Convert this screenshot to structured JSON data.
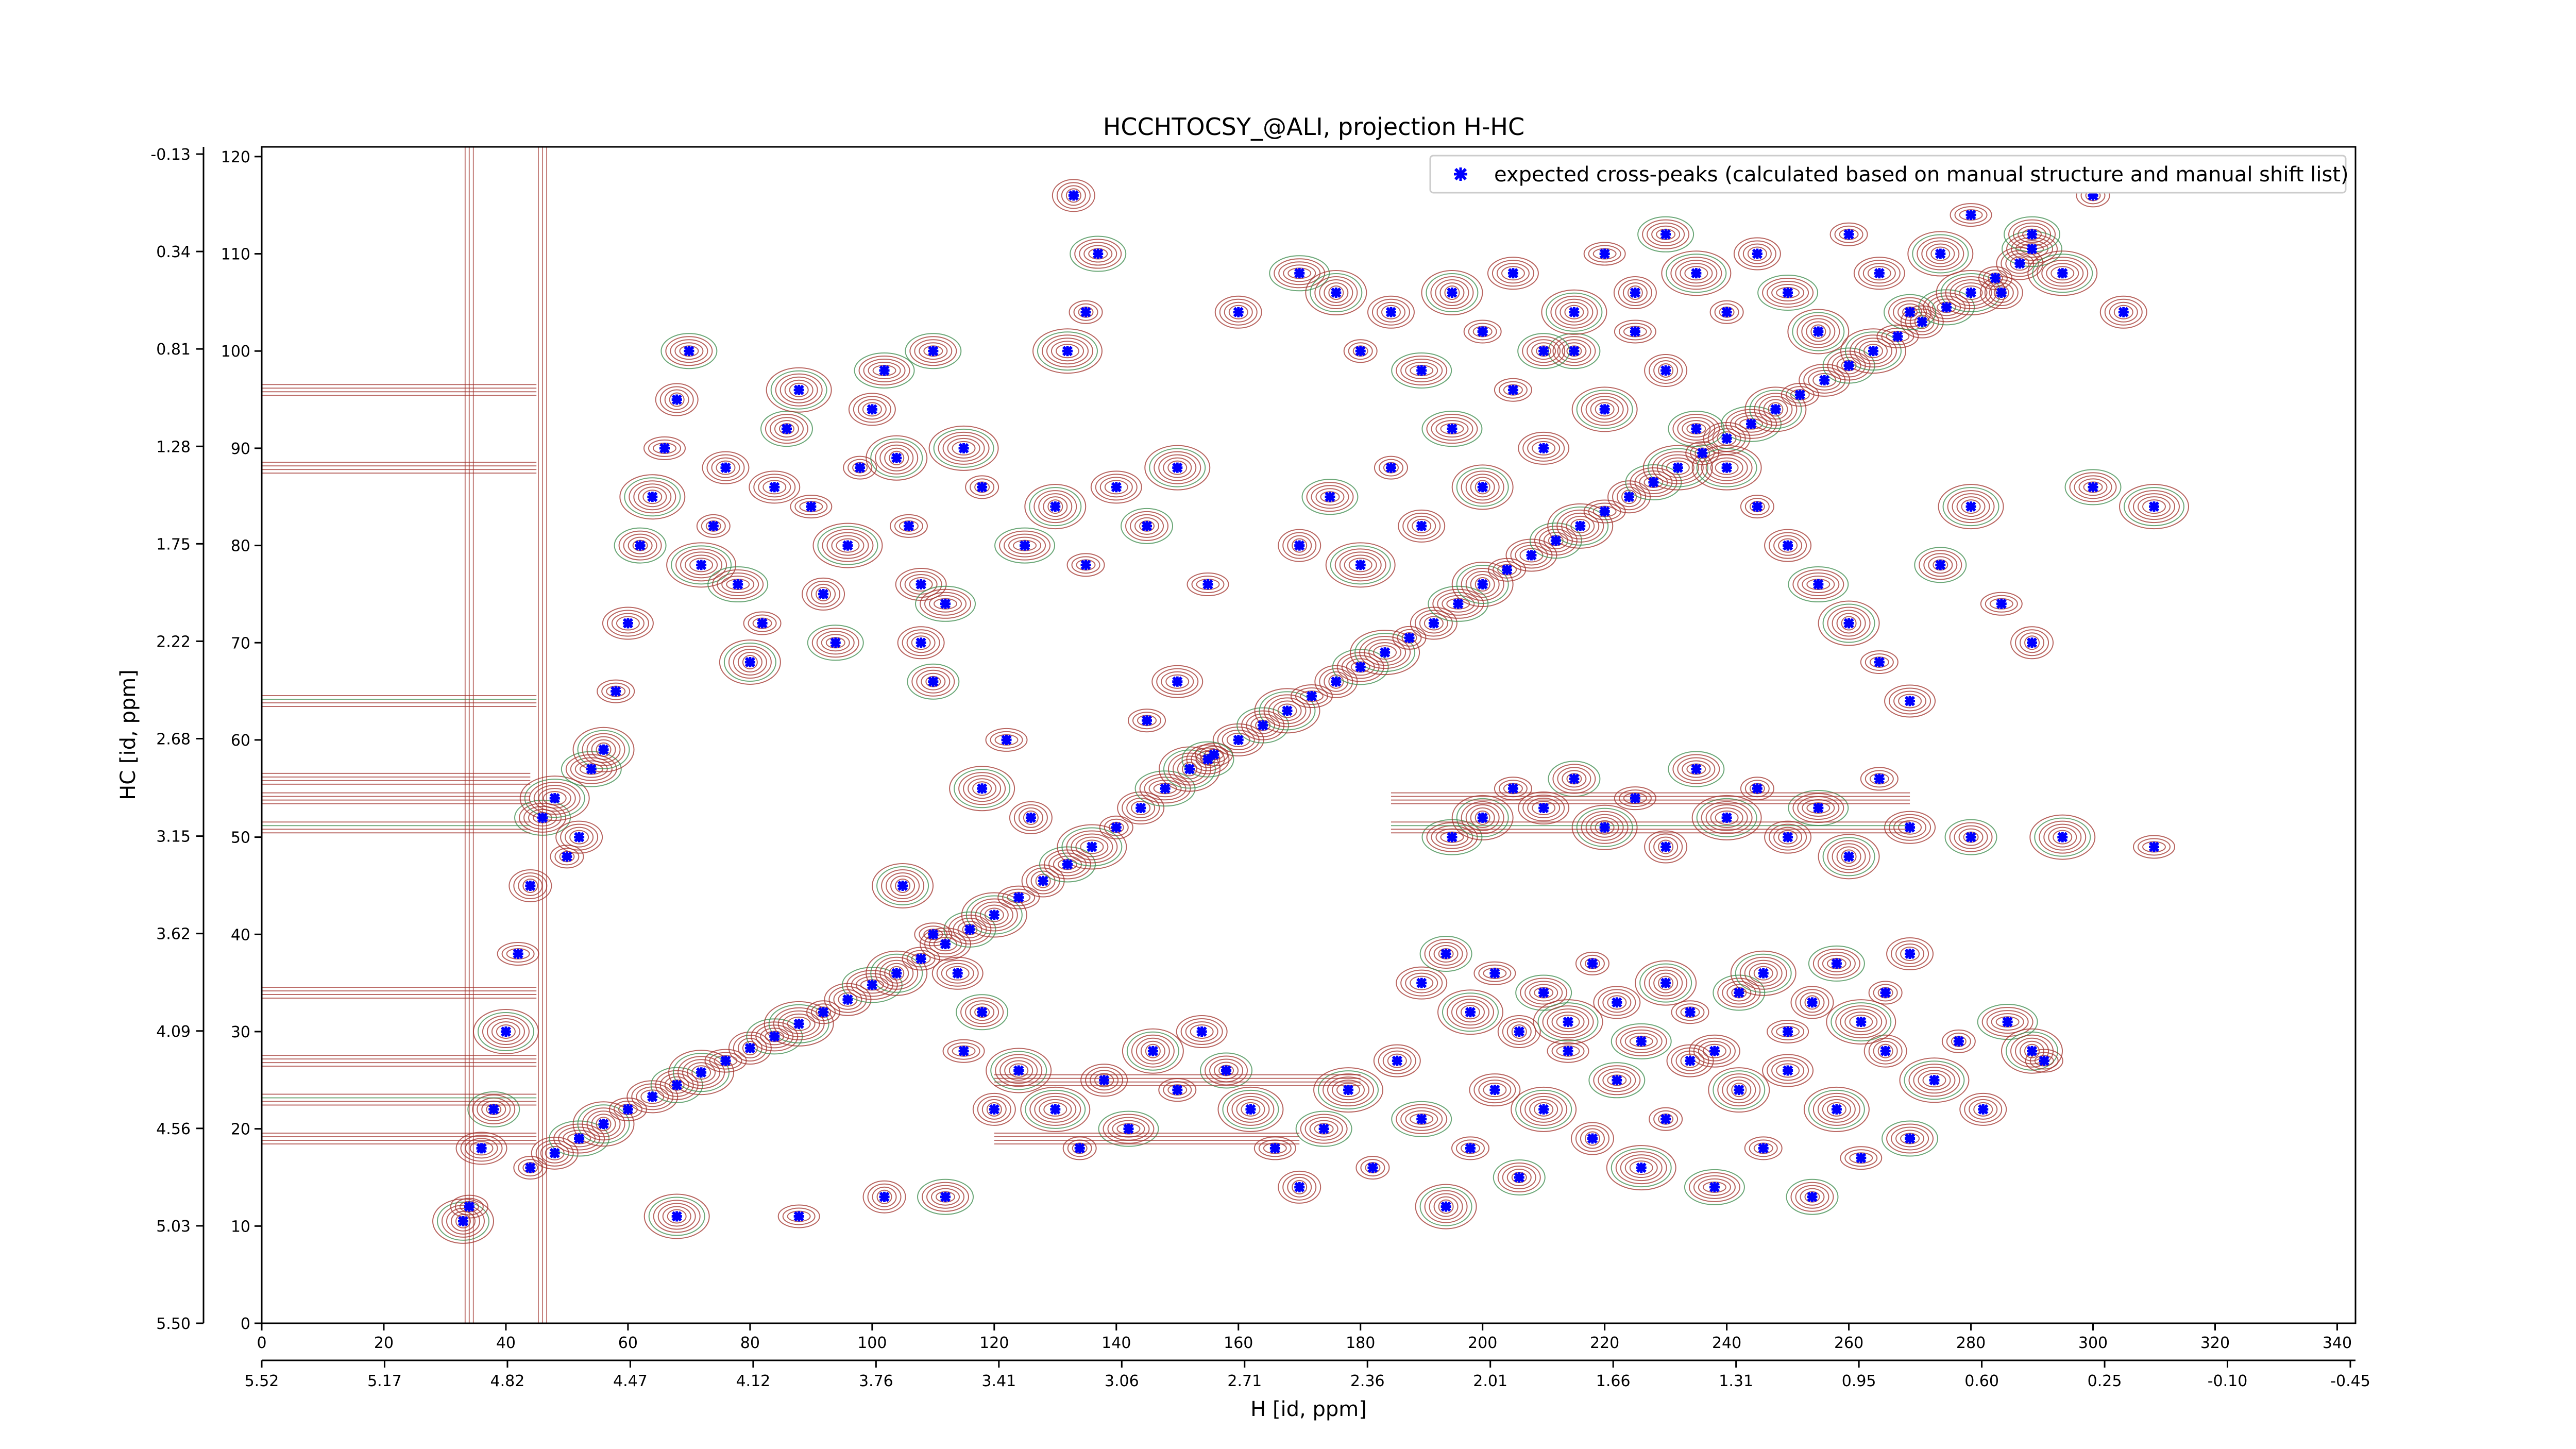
{
  "chart_data": {
    "type": "scatter",
    "title": "HCCHTOCSY_@ALI, projection H-HC",
    "xlabel_bottom": "H [id, ppm]",
    "ylabel_left": "HC [id, ppm]",
    "x_index_range": [
      0,
      343
    ],
    "y_index_range": [
      0,
      121
    ],
    "x_index_ticks": [
      "0",
      "20",
      "40",
      "60",
      "80",
      "100",
      "120",
      "140",
      "160",
      "180",
      "200",
      "220",
      "240",
      "260",
      "280",
      "300",
      "320",
      "340"
    ],
    "y_index_ticks": [
      "0",
      "10",
      "20",
      "30",
      "40",
      "50",
      "60",
      "70",
      "80",
      "90",
      "100",
      "110",
      "120"
    ],
    "x_ppm_ticks": [
      "5.52",
      "5.17",
      "4.82",
      "4.47",
      "4.12",
      "3.76",
      "3.41",
      "3.06",
      "2.71",
      "2.36",
      "2.01",
      "1.66",
      "1.31",
      "0.95",
      "0.60",
      "0.25",
      "-0.10",
      "-0.45"
    ],
    "y_ppm_ticks": [
      "5.50",
      "5.03",
      "4.56",
      "4.09",
      "3.62",
      "3.15",
      "2.68",
      "2.22",
      "1.75",
      "1.28",
      "0.81",
      "0.34",
      "-0.13"
    ],
    "legend": {
      "label": "expected cross-peaks (calculated based on manual structure and manual shift list)",
      "position": "top-right"
    },
    "series": [
      {
        "name": "expected cross-peaks (calculated based on manual structure and manual shift list)",
        "color": "#0000ff",
        "marker": "x",
        "points": [
          [
            44,
            16
          ],
          [
            48,
            17.5
          ],
          [
            52,
            19
          ],
          [
            56,
            20.5
          ],
          [
            60,
            22
          ],
          [
            64,
            23.3
          ],
          [
            68,
            24.5
          ],
          [
            72,
            25.8
          ],
          [
            76,
            27
          ],
          [
            80,
            28.3
          ],
          [
            84,
            29.5
          ],
          [
            88,
            30.8
          ],
          [
            92,
            32
          ],
          [
            96,
            33.3
          ],
          [
            100,
            34.8
          ],
          [
            104,
            36
          ],
          [
            108,
            37.5
          ],
          [
            112,
            39
          ],
          [
            116,
            40.5
          ],
          [
            120,
            42
          ],
          [
            124,
            43.8
          ],
          [
            128,
            45.5
          ],
          [
            132,
            47.2
          ],
          [
            136,
            49
          ],
          [
            140,
            51
          ],
          [
            144,
            53
          ],
          [
            148,
            55
          ],
          [
            152,
            57
          ],
          [
            156,
            58.5
          ],
          [
            160,
            60
          ],
          [
            164,
            61.5
          ],
          [
            168,
            63
          ],
          [
            172,
            64.5
          ],
          [
            176,
            66
          ],
          [
            180,
            67.5
          ],
          [
            184,
            69
          ],
          [
            188,
            70.5
          ],
          [
            192,
            72
          ],
          [
            196,
            74
          ],
          [
            200,
            76
          ],
          [
            204,
            77.5
          ],
          [
            208,
            79
          ],
          [
            212,
            80.5
          ],
          [
            216,
            82
          ],
          [
            220,
            83.5
          ],
          [
            224,
            85
          ],
          [
            228,
            86.5
          ],
          [
            232,
            88
          ],
          [
            236,
            89.5
          ],
          [
            240,
            91
          ],
          [
            244,
            92.5
          ],
          [
            248,
            94
          ],
          [
            252,
            95.5
          ],
          [
            256,
            97
          ],
          [
            260,
            98.5
          ],
          [
            264,
            100
          ],
          [
            268,
            101.5
          ],
          [
            272,
            103
          ],
          [
            276,
            104.5
          ],
          [
            280,
            106
          ],
          [
            284,
            107.5
          ],
          [
            288,
            109
          ],
          [
            290,
            110.5
          ],
          [
            33,
            10.5
          ],
          [
            34,
            12
          ],
          [
            36,
            18
          ],
          [
            38,
            22
          ],
          [
            40,
            30
          ],
          [
            42,
            38
          ],
          [
            44,
            45
          ],
          [
            46,
            52
          ],
          [
            48,
            54
          ],
          [
            50,
            48
          ],
          [
            52,
            50
          ],
          [
            54,
            57
          ],
          [
            56,
            59
          ],
          [
            58,
            65
          ],
          [
            60,
            72
          ],
          [
            62,
            80
          ],
          [
            64,
            85
          ],
          [
            66,
            90
          ],
          [
            68,
            95
          ],
          [
            70,
            100
          ],
          [
            72,
            78
          ],
          [
            74,
            82
          ],
          [
            76,
            88
          ],
          [
            78,
            76
          ],
          [
            80,
            68
          ],
          [
            82,
            72
          ],
          [
            84,
            86
          ],
          [
            86,
            92
          ],
          [
            88,
            96
          ],
          [
            90,
            84
          ],
          [
            92,
            75
          ],
          [
            94,
            70
          ],
          [
            96,
            80
          ],
          [
            98,
            88
          ],
          [
            100,
            94
          ],
          [
            102,
            98
          ],
          [
            104,
            89
          ],
          [
            106,
            82
          ],
          [
            108,
            76
          ],
          [
            110,
            66
          ],
          [
            68,
            11
          ],
          [
            88,
            11
          ],
          [
            102,
            13
          ],
          [
            112,
            13
          ],
          [
            130,
            22
          ],
          [
            134,
            18
          ],
          [
            138,
            25
          ],
          [
            142,
            20
          ],
          [
            146,
            28
          ],
          [
            150,
            24
          ],
          [
            154,
            30
          ],
          [
            158,
            26
          ],
          [
            162,
            22
          ],
          [
            166,
            18
          ],
          [
            170,
            14
          ],
          [
            174,
            20
          ],
          [
            178,
            24
          ],
          [
            182,
            16
          ],
          [
            186,
            27
          ],
          [
            190,
            21
          ],
          [
            194,
            12
          ],
          [
            198,
            18
          ],
          [
            202,
            24
          ],
          [
            206,
            15
          ],
          [
            210,
            22
          ],
          [
            214,
            28
          ],
          [
            218,
            19
          ],
          [
            222,
            25
          ],
          [
            226,
            16
          ],
          [
            230,
            21
          ],
          [
            234,
            27
          ],
          [
            238,
            14
          ],
          [
            242,
            24
          ],
          [
            246,
            18
          ],
          [
            250,
            26
          ],
          [
            254,
            13
          ],
          [
            258,
            22
          ],
          [
            262,
            17
          ],
          [
            266,
            28
          ],
          [
            270,
            19
          ],
          [
            274,
            25
          ],
          [
            278,
            29
          ],
          [
            282,
            22
          ],
          [
            286,
            31
          ],
          [
            290,
            28
          ],
          [
            292,
            27
          ],
          [
            190,
            35
          ],
          [
            194,
            38
          ],
          [
            198,
            32
          ],
          [
            202,
            36
          ],
          [
            206,
            30
          ],
          [
            210,
            34
          ],
          [
            214,
            31
          ],
          [
            218,
            37
          ],
          [
            222,
            33
          ],
          [
            226,
            29
          ],
          [
            230,
            35
          ],
          [
            234,
            32
          ],
          [
            238,
            28
          ],
          [
            242,
            34
          ],
          [
            246,
            36
          ],
          [
            250,
            30
          ],
          [
            254,
            33
          ],
          [
            258,
            37
          ],
          [
            262,
            31
          ],
          [
            266,
            34
          ],
          [
            270,
            38
          ],
          [
            195,
            50
          ],
          [
            200,
            52
          ],
          [
            205,
            55
          ],
          [
            210,
            53
          ],
          [
            215,
            56
          ],
          [
            220,
            51
          ],
          [
            225,
            54
          ],
          [
            230,
            49
          ],
          [
            235,
            57
          ],
          [
            240,
            52
          ],
          [
            245,
            55
          ],
          [
            250,
            50
          ],
          [
            255,
            53
          ],
          [
            260,
            48
          ],
          [
            265,
            56
          ],
          [
            270,
            51
          ],
          [
            280,
            50
          ],
          [
            295,
            50
          ],
          [
            310,
            49
          ],
          [
            170,
            80
          ],
          [
            175,
            85
          ],
          [
            180,
            78
          ],
          [
            185,
            88
          ],
          [
            190,
            82
          ],
          [
            195,
            92
          ],
          [
            200,
            86
          ],
          [
            205,
            96
          ],
          [
            210,
            90
          ],
          [
            215,
            100
          ],
          [
            220,
            94
          ],
          [
            225,
            102
          ],
          [
            230,
            98
          ],
          [
            235,
            92
          ],
          [
            240,
            88
          ],
          [
            245,
            84
          ],
          [
            250,
            80
          ],
          [
            255,
            76
          ],
          [
            260,
            72
          ],
          [
            265,
            68
          ],
          [
            270,
            64
          ],
          [
            275,
            78
          ],
          [
            280,
            84
          ],
          [
            285,
            74
          ],
          [
            290,
            70
          ],
          [
            300,
            86
          ],
          [
            310,
            84
          ],
          [
            180,
            100
          ],
          [
            185,
            104
          ],
          [
            190,
            98
          ],
          [
            195,
            106
          ],
          [
            200,
            102
          ],
          [
            205,
            108
          ],
          [
            210,
            100
          ],
          [
            215,
            104
          ],
          [
            220,
            110
          ],
          [
            225,
            106
          ],
          [
            230,
            112
          ],
          [
            235,
            108
          ],
          [
            240,
            104
          ],
          [
            245,
            110
          ],
          [
            250,
            106
          ],
          [
            255,
            102
          ],
          [
            260,
            112
          ],
          [
            265,
            108
          ],
          [
            270,
            104
          ],
          [
            275,
            110
          ],
          [
            280,
            114
          ],
          [
            285,
            106
          ],
          [
            290,
            112
          ],
          [
            295,
            108
          ],
          [
            300,
            116
          ],
          [
            305,
            104
          ],
          [
            125,
            80
          ],
          [
            130,
            84
          ],
          [
            135,
            78
          ],
          [
            140,
            86
          ],
          [
            145,
            82
          ],
          [
            150,
            88
          ],
          [
            155,
            76
          ],
          [
            133,
            116
          ],
          [
            137,
            110
          ],
          [
            132,
            100
          ],
          [
            135,
            104
          ],
          [
            160,
            104
          ],
          [
            170,
            108
          ],
          [
            176,
            106
          ],
          [
            145,
            62
          ],
          [
            150,
            66
          ],
          [
            155,
            58
          ],
          [
            118,
            55
          ],
          [
            122,
            60
          ],
          [
            126,
            52
          ],
          [
            110,
            100
          ],
          [
            115,
            90
          ],
          [
            118,
            86
          ],
          [
            108,
            70
          ],
          [
            112,
            74
          ],
          [
            105,
            45
          ],
          [
            110,
            40
          ],
          [
            114,
            36
          ],
          [
            118,
            32
          ],
          [
            124,
            26
          ],
          [
            115,
            28
          ],
          [
            120,
            22
          ]
        ]
      }
    ],
    "grid": false
  }
}
